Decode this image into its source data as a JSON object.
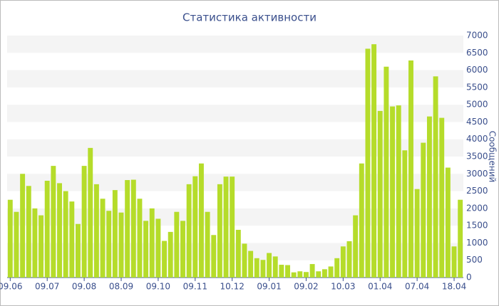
{
  "chart_data": {
    "type": "bar",
    "title": "Статистика активности",
    "y_label": "Сообщений",
    "categories": [
      "09.06",
      null,
      null,
      null,
      null,
      null,
      "09.07",
      null,
      null,
      null,
      null,
      null,
      "09.08",
      null,
      null,
      null,
      null,
      null,
      "08.09",
      null,
      null,
      null,
      null,
      null,
      "09.10",
      null,
      null,
      null,
      null,
      null,
      "09.11",
      null,
      null,
      null,
      null,
      null,
      "10.12",
      null,
      null,
      null,
      null,
      null,
      "09.01",
      null,
      null,
      null,
      null,
      null,
      "09.02",
      null,
      null,
      null,
      null,
      null,
      "10.03",
      null,
      null,
      null,
      null,
      null,
      "01.04",
      null,
      null,
      null,
      null,
      null,
      "07.04",
      null,
      null,
      null,
      null,
      null,
      "18.04",
      null
    ],
    "values": [
      2250,
      1900,
      3000,
      2650,
      2000,
      1800,
      2800,
      3230,
      2730,
      2500,
      2200,
      1550,
      3230,
      3750,
      2700,
      2280,
      1930,
      2530,
      1880,
      2820,
      2830,
      2280,
      1640,
      2000,
      1700,
      1060,
      1320,
      1900,
      1640,
      2700,
      2930,
      3300,
      1900,
      1230,
      2700,
      2920,
      2920,
      1380,
      980,
      770,
      560,
      510,
      710,
      610,
      370,
      360,
      150,
      180,
      160,
      390,
      180,
      240,
      320,
      560,
      900,
      1050,
      1800,
      3300,
      6620,
      6750,
      4820,
      6100,
      4950,
      4980,
      3680,
      6280,
      2560,
      3900,
      4660,
      5820,
      4620,
      3180,
      900,
      2250
    ],
    "color": "#b5dc2a",
    "ylim": [
      0,
      7000
    ],
    "yticks": [
      0,
      500,
      1000,
      1500,
      2000,
      2500,
      3000,
      3500,
      4000,
      4500,
      5000,
      5500,
      6000,
      6500,
      7000
    ],
    "grid": "bands"
  }
}
